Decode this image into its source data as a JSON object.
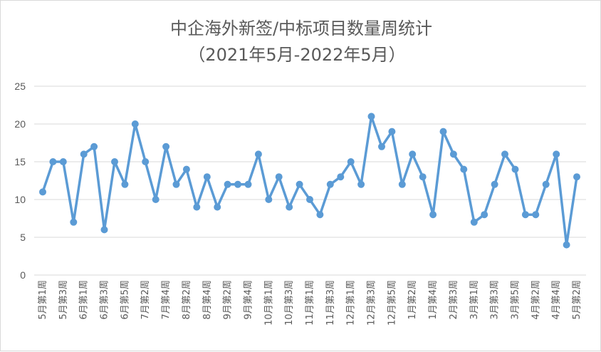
{
  "chart_data": {
    "type": "line",
    "title": "中企海外新签/中标项目数量周统计",
    "subtitle": "（2021年5月-2022年5月）",
    "xlabel": "",
    "ylabel": "",
    "ylim": [
      0,
      25
    ],
    "yticks": [
      0,
      5,
      10,
      15,
      20,
      25
    ],
    "grid": "horizontal",
    "legend": "none",
    "color": "#5B9BD5",
    "gridColor": "#d9d9d9",
    "categories": [
      "5月第1周",
      "",
      "5月第3周",
      "",
      "6月第1周",
      "",
      "6月第3周",
      "",
      "6月第5周",
      "",
      "7月第2周",
      "",
      "7月第4周",
      "",
      "8月第2周",
      "",
      "8月第4周",
      "",
      "9月第2周",
      "",
      "9月第4周",
      "",
      "10月第1周",
      "",
      "10月第3周",
      "",
      "11月第1周",
      "",
      "11月第3周",
      "",
      "12月第1周",
      "",
      "12月第3周",
      "",
      "12月第5周",
      "",
      "1月第2周",
      "",
      "1月第4周",
      "",
      "2月第3周",
      "",
      "3月第1周",
      "",
      "3月第3周",
      "",
      "3月第5周",
      "",
      "4月第2周",
      "",
      "4月第4周",
      "",
      "5月第2周"
    ],
    "values": [
      11,
      15,
      15,
      7,
      16,
      17,
      6,
      15,
      12,
      20,
      15,
      10,
      17,
      12,
      14,
      9,
      13,
      9,
      12,
      12,
      12,
      16,
      10,
      13,
      9,
      12,
      10,
      8,
      12,
      13,
      15,
      12,
      21,
      17,
      19,
      12,
      16,
      13,
      8,
      19,
      16,
      14,
      7,
      8,
      12,
      16,
      14,
      8,
      8,
      12,
      16,
      4,
      13
    ]
  }
}
